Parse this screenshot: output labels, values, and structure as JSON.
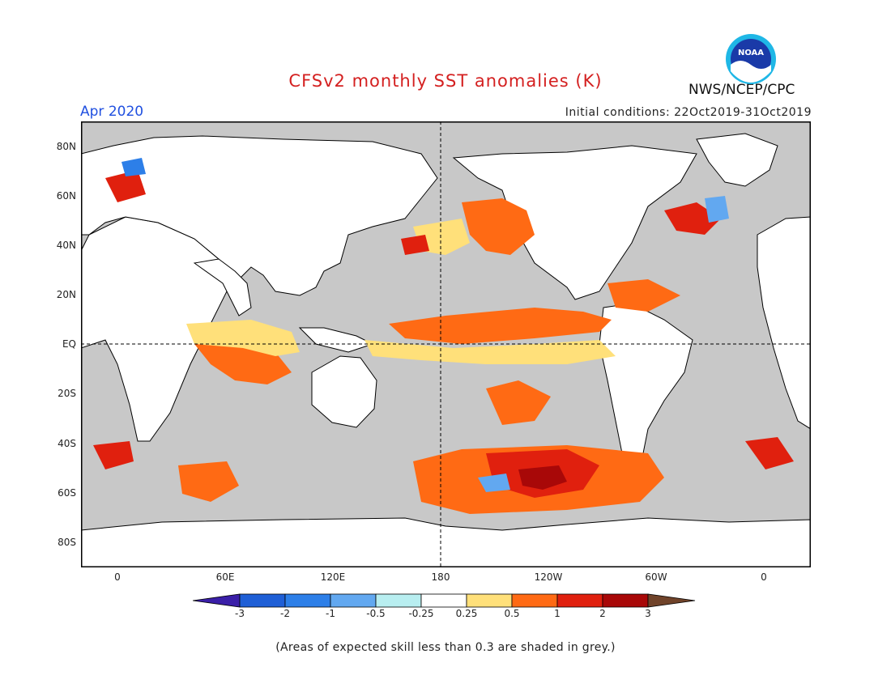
{
  "header": {
    "title": "CFSv2 monthly SST anomalies (K)",
    "target_month": "Apr 2020",
    "initial_conditions": "Initial conditions: 22Oct2019-31Oct2019",
    "agency": "NWS/NCEP/CPC",
    "logo_text": "NOAA"
  },
  "axes": {
    "lat_labels": [
      "80N",
      "60N",
      "40N",
      "20N",
      "EQ",
      "20S",
      "40S",
      "60S",
      "80S"
    ],
    "lon_labels": [
      "0",
      "60E",
      "120E",
      "180",
      "120W",
      "60W",
      "0"
    ]
  },
  "colorbar": {
    "labels": [
      "-3",
      "-2",
      "-1",
      "-0.5",
      "-0.25",
      "0.25",
      "0.5",
      "1",
      "2",
      "3"
    ],
    "colors": [
      "#3a1fa8",
      "#1f5fd6",
      "#2d7fe8",
      "#62a8f0",
      "#b8eef0",
      "#ffffff",
      "#ffe07a",
      "#ff6a14",
      "#e0200e",
      "#a80808",
      "#70432a"
    ]
  },
  "colors": {
    "skill_grey": "#c8c8c8",
    "land": "#ffffff",
    "coast": "#000000"
  },
  "footnote": "(Areas of expected skill less than 0.3 are shaded in grey.)"
}
